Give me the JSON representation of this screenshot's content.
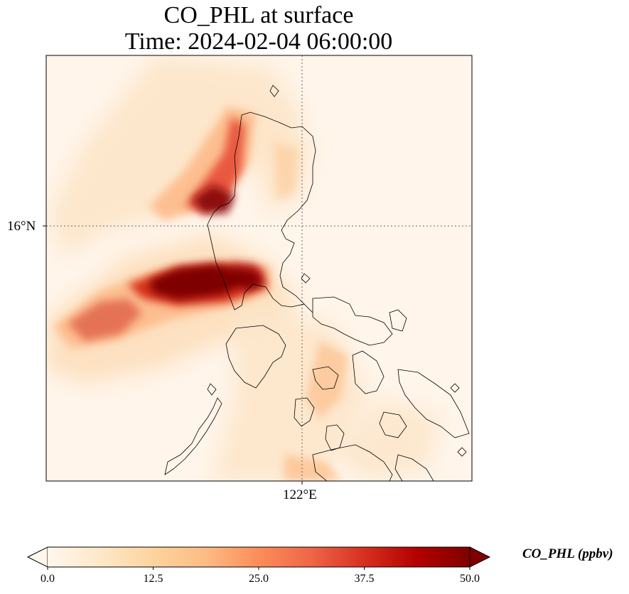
{
  "title": {
    "line1": "CO_PHL at surface",
    "line2": "Time: 2024-02-04 06:00:00"
  },
  "map": {
    "projection": "lat-lon",
    "gridlines": "dotted",
    "lat_tick": "16°N",
    "lon_tick": "122°E",
    "plume_colormap": "OrRd",
    "coastline_color": "#000000"
  },
  "colorbar": {
    "label": "CO_PHL (ppbv)",
    "ticks": [
      "0.0",
      "12.5",
      "25.0",
      "37.5",
      "50.0"
    ],
    "min": 0,
    "max": 50,
    "extend": "both",
    "colors": [
      "#fff7ec",
      "#fee8c8",
      "#fdd49e",
      "#fdbb84",
      "#fc8d59",
      "#ef6548",
      "#d7301f",
      "#b30000",
      "#7f0000"
    ]
  }
}
